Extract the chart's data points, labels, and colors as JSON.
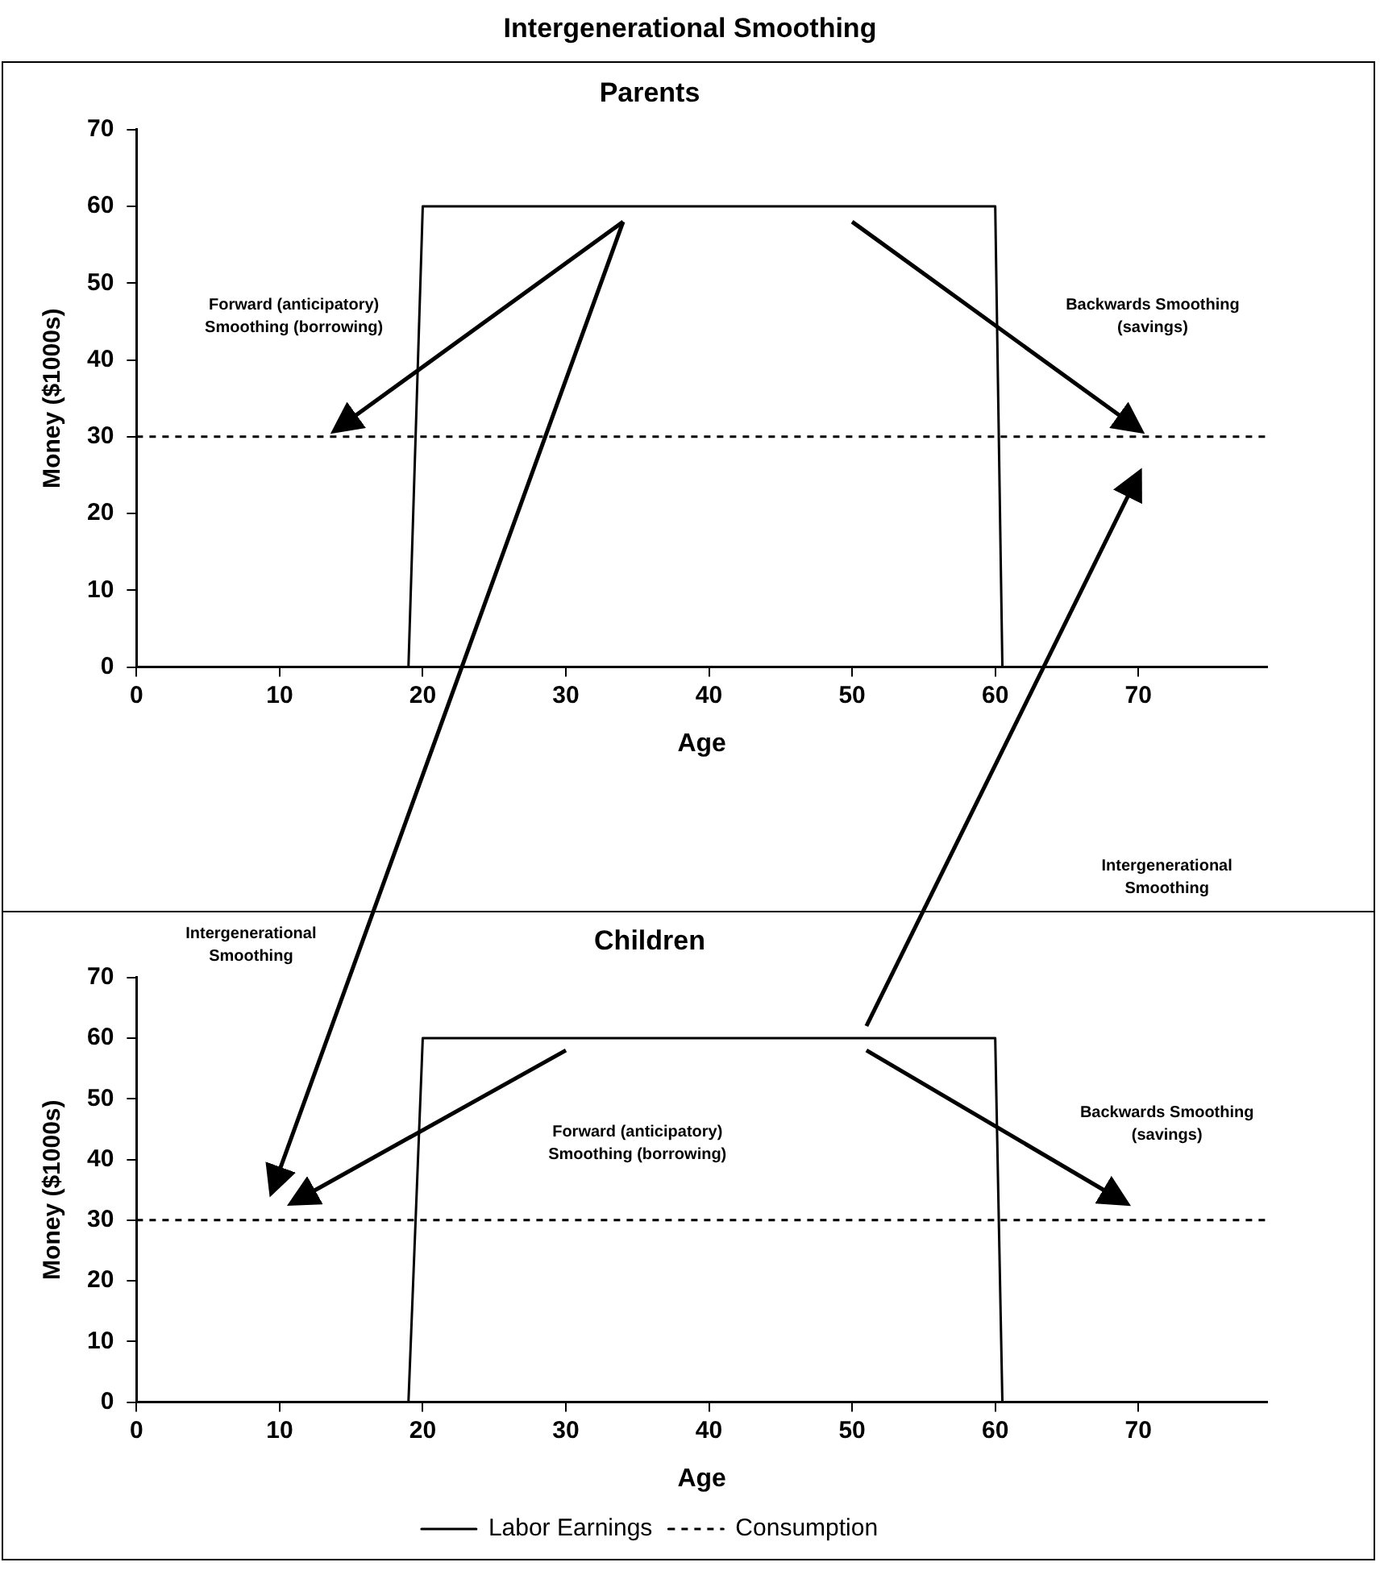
{
  "chart_data": [
    {
      "type": "line",
      "title": "Intergenerational Smoothing",
      "subtitle": "Parents",
      "xlabel": "Age",
      "ylabel": "Money ($1000s)",
      "xlim": [
        0,
        79
      ],
      "xticks": [
        0,
        10,
        20,
        30,
        40,
        50,
        60,
        70
      ],
      "ylim": [
        0,
        70
      ],
      "yticks": [
        0,
        10,
        20,
        30,
        40,
        50,
        60,
        70
      ],
      "grid": false,
      "legend": false,
      "marker": "none",
      "series": [
        {
          "color": "#000000",
          "line_style": "solid",
          "x": [
            0,
            19,
            20,
            60,
            60.5,
            79
          ],
          "values": [
            0,
            0,
            60,
            60,
            0,
            0
          ]
        },
        {
          "color": "#000000",
          "line_style": "dashed",
          "x": [
            0,
            79
          ],
          "values": [
            30,
            30
          ]
        }
      ],
      "annotations": [
        "Forward (anticipatory) Smoothing (borrowing)",
        "Backwards Smoothing (savings)",
        "Intergenerational Smoothing"
      ]
    },
    {
      "type": "line",
      "title": "Children",
      "xlabel": "Age",
      "ylabel": "Money ($1000s)",
      "xlim": [
        0,
        79
      ],
      "xticks": [
        0,
        10,
        20,
        30,
        40,
        50,
        60,
        70
      ],
      "ylim": [
        0,
        70
      ],
      "yticks": [
        0,
        10,
        20,
        30,
        40,
        50,
        60,
        70
      ],
      "grid": false,
      "legend": "bottom",
      "marker": "none",
      "series": [
        {
          "name": "Labor Earnings",
          "color": "#000000",
          "line_style": "solid",
          "x": [
            0,
            19,
            20,
            60,
            60.5,
            79
          ],
          "values": [
            0,
            0,
            60,
            60,
            0,
            0
          ]
        },
        {
          "name": "Consumption",
          "color": "#000000",
          "line_style": "dashed",
          "x": [
            0,
            79
          ],
          "values": [
            30,
            30
          ]
        }
      ],
      "annotations": [
        "Intergenerational Smoothing",
        "Forward (anticipatory) Smoothing (borrowing)",
        "Backwards Smoothing (savings)"
      ]
    }
  ]
}
